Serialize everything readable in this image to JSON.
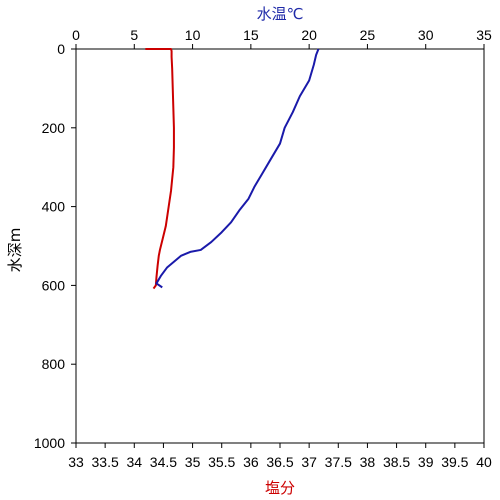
{
  "chart_data": {
    "type": "line",
    "x_top": {
      "label": "水温℃",
      "ticks": [
        0,
        5,
        10,
        15,
        20,
        25,
        30,
        35
      ],
      "range": [
        0,
        35
      ],
      "color": "#1f2aa8"
    },
    "x_bottom": {
      "label": "塩分",
      "ticks": [
        33,
        33.5,
        34,
        34.5,
        35,
        35.5,
        36,
        36.5,
        37,
        37.5,
        38,
        38.5,
        39,
        39.5,
        40
      ],
      "range": [
        33,
        40
      ],
      "color": "#cc0000"
    },
    "y": {
      "label": "水深m",
      "ticks": [
        0,
        200,
        400,
        600,
        800,
        1000
      ],
      "range": [
        0,
        1000
      ],
      "inverted": true
    },
    "series": [
      {
        "axis": "bottom",
        "color": "#cc0000",
        "points": [
          [
            34.19,
            0
          ],
          [
            34.63,
            0
          ],
          [
            34.64,
            5
          ],
          [
            34.64,
            20
          ],
          [
            34.65,
            50
          ],
          [
            34.66,
            100
          ],
          [
            34.67,
            150
          ],
          [
            34.68,
            200
          ],
          [
            34.68,
            250
          ],
          [
            34.67,
            300
          ],
          [
            34.65,
            330
          ],
          [
            34.63,
            360
          ],
          [
            34.6,
            390
          ],
          [
            34.57,
            420
          ],
          [
            34.54,
            450
          ],
          [
            34.49,
            480
          ],
          [
            34.44,
            510
          ],
          [
            34.42,
            525
          ],
          [
            34.4,
            550
          ],
          [
            34.38,
            580
          ],
          [
            34.37,
            600
          ],
          [
            34.33,
            608
          ]
        ]
      },
      {
        "axis": "top",
        "color": "#1a1aaa",
        "points": [
          [
            20.8,
            0
          ],
          [
            20.6,
            15
          ],
          [
            20.4,
            40
          ],
          [
            20.0,
            80
          ],
          [
            19.2,
            120
          ],
          [
            18.6,
            160
          ],
          [
            17.9,
            200
          ],
          [
            17.5,
            240
          ],
          [
            16.7,
            280
          ],
          [
            15.9,
            320
          ],
          [
            15.3,
            350
          ],
          [
            14.8,
            380
          ],
          [
            14.0,
            410
          ],
          [
            13.3,
            440
          ],
          [
            12.5,
            465
          ],
          [
            11.6,
            490
          ],
          [
            10.7,
            510
          ],
          [
            9.8,
            515
          ],
          [
            9.0,
            525
          ],
          [
            8.4,
            540
          ],
          [
            7.8,
            555
          ],
          [
            7.3,
            575
          ],
          [
            6.9,
            595
          ],
          [
            7.4,
            605
          ]
        ]
      }
    ]
  }
}
